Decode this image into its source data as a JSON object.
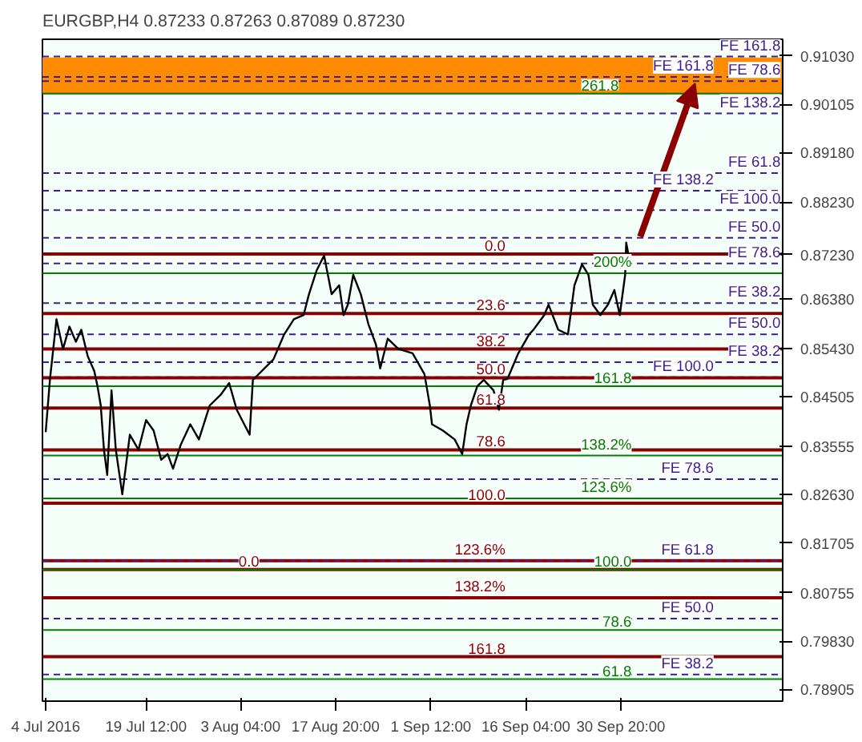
{
  "chart_data": {
    "type": "line",
    "title": "EURGBP,H4  0.87233 0.87263 0.87089 0.87230",
    "x": [
      "2016-07-04T00:00",
      "2016-07-04T16:00",
      "2016-07-05T16:00",
      "2016-07-06T16:00",
      "2016-07-07T16:00",
      "2016-07-08T16:00",
      "2016-07-09T12:00",
      "2016-07-10T12:00",
      "2016-07-11T12:00",
      "2016-07-12T00:00",
      "2016-07-12T12:00",
      "2016-07-13T00:00",
      "2016-07-13T12:00",
      "2016-07-14T04:00",
      "2016-07-14T20:00",
      "2016-07-15T20:00",
      "2016-07-17T00:00",
      "2016-07-18T08:00",
      "2016-07-19T12:00",
      "2016-07-20T16:00",
      "2016-07-21T20:00",
      "2016-07-22T20:00",
      "2016-07-23T16:00",
      "2016-07-24T20:00",
      "2016-07-26T08:00",
      "2016-07-27T16:00",
      "2016-07-29T08:00",
      "2016-07-31T00:00",
      "2016-08-01T08:00",
      "2016-08-02T12:00",
      "2016-08-04T12:00",
      "2016-08-05T00:00",
      "2016-08-05T04:00",
      "2016-08-08T04:00",
      "2016-08-09T20:00",
      "2016-08-11T08:00",
      "2016-08-12T20:00",
      "2016-08-13T16:00",
      "2016-08-14T20:00",
      "2016-08-16T00:00",
      "2016-08-17T04:00",
      "2016-08-18T08:00",
      "2016-08-19T00:00",
      "2016-08-19T16:00",
      "2016-08-20T12:00",
      "2016-08-21T16:00",
      "2016-08-22T20:00",
      "2016-08-24T00:00",
      "2016-08-24T16:00",
      "2016-08-25T20:00",
      "2016-08-27T12:00",
      "2016-08-29T16:00",
      "2016-08-31T12:00",
      "2016-09-01T08:00",
      "2016-09-01T16:00",
      "2016-09-03T08:00",
      "2016-09-05T04:00",
      "2016-09-06T08:00",
      "2016-09-07T00:00",
      "2016-09-07T16:00",
      "2016-09-08T16:00",
      "2016-09-09T16:00",
      "2016-09-11T04:00",
      "2016-09-12T00:00",
      "2016-09-12T16:00",
      "2016-09-13T08:00",
      "2016-09-15T00:00",
      "2016-09-16T16:00",
      "2016-09-17T08:00",
      "2016-09-19T00:00",
      "2016-09-19T16:00",
      "2016-09-21T04:00",
      "2016-09-22T16:00",
      "2016-09-23T16:00",
      "2016-09-24T20:00",
      "2016-09-25T20:00",
      "2016-09-26T12:00",
      "2016-09-27T16:00",
      "2016-09-28T20:00",
      "2016-09-29T20:00",
      "2016-09-30T16:00",
      "2016-10-01T12:00",
      "2016-10-01T16:00",
      "2016-10-02T00:00"
    ],
    "series": [
      {
        "color": "#000000",
        "values": [
          0.8383,
          0.8485,
          0.8599,
          0.8542,
          0.8585,
          0.8556,
          0.8579,
          0.8528,
          0.85,
          0.8471,
          0.8434,
          0.8349,
          0.8301,
          0.8463,
          0.8349,
          0.8264,
          0.8378,
          0.8349,
          0.8406,
          0.8386,
          0.833,
          0.8341,
          0.8313,
          0.8358,
          0.8398,
          0.8369,
          0.8434,
          0.8454,
          0.8477,
          0.8426,
          0.8378,
          0.8483,
          0.8485,
          0.8522,
          0.857,
          0.8599,
          0.8607,
          0.8647,
          0.8692,
          0.8721,
          0.8647,
          0.8664,
          0.8607,
          0.8627,
          0.8684,
          0.8647,
          0.859,
          0.8551,
          0.8505,
          0.8562,
          0.8542,
          0.8534,
          0.8494,
          0.8434,
          0.8398,
          0.8386,
          0.8369,
          0.8341,
          0.8398,
          0.8434,
          0.8471,
          0.8483,
          0.8463,
          0.8426,
          0.8483,
          0.8485,
          0.8534,
          0.857,
          0.8579,
          0.8607,
          0.8627,
          0.8579,
          0.857,
          0.8664,
          0.8704,
          0.8684,
          0.8627,
          0.8607,
          0.8627,
          0.8655,
          0.8607,
          0.8684,
          0.8746,
          0.8723
        ]
      }
    ],
    "xlim": [
      "2016-07-03T12:00",
      "2016-10-25T20:00"
    ],
    "xticks": [
      {
        "value": "2016-07-04T00:00",
        "label": "4 Jul 2016"
      },
      {
        "value": "2016-07-19T12:00",
        "label": "19 Jul 12:00"
      },
      {
        "value": "2016-08-03T04:00",
        "label": "3 Aug 04:00"
      },
      {
        "value": "2016-08-17T20:00",
        "label": "17 Aug 20:00"
      },
      {
        "value": "2016-09-01T12:00",
        "label": "1 Sep 12:00"
      },
      {
        "value": "2016-09-16T04:00",
        "label": "16 Sep 04:00"
      },
      {
        "value": "2016-09-30T20:00",
        "label": "30 Sep 20:00"
      }
    ],
    "ylim": [
      0.7868,
      0.9135
    ],
    "yticks": [
      {
        "value": 0.9103,
        "label": "0.91030"
      },
      {
        "value": 0.90105,
        "label": "0.90105"
      },
      {
        "value": 0.8918,
        "label": "0.89180"
      },
      {
        "value": 0.8823,
        "label": "0.88230"
      },
      {
        "value": 0.8723,
        "label": "0.87230"
      },
      {
        "value": 0.8638,
        "label": "0.86380"
      },
      {
        "value": 0.8543,
        "label": "0.85430"
      },
      {
        "value": 0.84505,
        "label": "0.84505"
      },
      {
        "value": 0.83555,
        "label": "0.83555"
      },
      {
        "value": 0.8263,
        "label": "0.82630"
      },
      {
        "value": 0.81705,
        "label": "0.81705"
      },
      {
        "value": 0.80755,
        "label": "0.80755"
      },
      {
        "value": 0.7983,
        "label": "0.79830"
      },
      {
        "value": 0.78905,
        "label": "0.78905"
      }
    ],
    "grid": false,
    "bands": [
      {
        "axis": "y",
        "from": 0.9029,
        "to": 0.91,
        "color": "#ff8c00"
      }
    ],
    "ref_lines": [
      {
        "axis": "y",
        "value": 0.9102,
        "color": "#3c1e8c",
        "line_style": "dashed"
      },
      {
        "axis": "y",
        "value": 0.9063,
        "color": "#3c1e8c",
        "line_style": "dashed"
      },
      {
        "axis": "y",
        "value": 0.9055,
        "color": "#3c1e8c",
        "line_style": "dashed"
      },
      {
        "axis": "y",
        "value": 0.9031,
        "color": "#008000",
        "line_style": "solid"
      },
      {
        "axis": "y",
        "value": 0.8993,
        "color": "#3c1e8c",
        "line_style": "dashed"
      },
      {
        "axis": "y",
        "value": 0.8879,
        "color": "#3c1e8c",
        "line_style": "dashed"
      },
      {
        "axis": "y",
        "value": 0.8845,
        "color": "#3c1e8c",
        "line_style": "dashed"
      },
      {
        "axis": "y",
        "value": 0.8808,
        "color": "#3c1e8c",
        "line_style": "dashed"
      },
      {
        "axis": "y",
        "value": 0.8755,
        "color": "#3c1e8c",
        "line_style": "dashed"
      },
      {
        "axis": "y",
        "value": 0.8724,
        "color": "#8b0000",
        "line_style": "solid"
      },
      {
        "axis": "y",
        "value": 0.8706,
        "color": "#3c1e8c",
        "line_style": "dashed"
      },
      {
        "axis": "y",
        "value": 0.8687,
        "color": "#008000",
        "line_style": "solid"
      },
      {
        "axis": "y",
        "value": 0.863,
        "color": "#3c1e8c",
        "line_style": "dashed"
      },
      {
        "axis": "y",
        "value": 0.861,
        "color": "#8b0000",
        "line_style": "solid"
      },
      {
        "axis": "y",
        "value": 0.857,
        "color": "#3c1e8c",
        "line_style": "dashed"
      },
      {
        "axis": "y",
        "value": 0.8542,
        "color": "#8b0000",
        "line_style": "solid"
      },
      {
        "axis": "y",
        "value": 0.8517,
        "color": "#3c1e8c",
        "line_style": "dashed"
      },
      {
        "axis": "y",
        "value": 0.8488,
        "color": "#3c1e8c",
        "line_style": "dashed"
      },
      {
        "axis": "y",
        "value": 0.8487,
        "color": "#8b0000",
        "line_style": "solid"
      },
      {
        "axis": "y",
        "value": 0.8471,
        "color": "#008000",
        "line_style": "solid"
      },
      {
        "axis": "y",
        "value": 0.8429,
        "color": "#8b0000",
        "line_style": "solid"
      },
      {
        "axis": "y",
        "value": 0.8349,
        "color": "#8b0000",
        "line_style": "solid"
      },
      {
        "axis": "y",
        "value": 0.8338,
        "color": "#008000",
        "line_style": "solid"
      },
      {
        "axis": "y",
        "value": 0.8293,
        "color": "#3c1e8c",
        "line_style": "dashed"
      },
      {
        "axis": "y",
        "value": 0.8256,
        "color": "#008000",
        "line_style": "solid"
      },
      {
        "axis": "y",
        "value": 0.8247,
        "color": "#8b0000",
        "line_style": "solid"
      },
      {
        "axis": "y",
        "value": 0.8137,
        "color": "#8b0000",
        "line_style": "solid"
      },
      {
        "axis": "y",
        "value": 0.8137,
        "color": "#3c1e8c",
        "line_style": "dashed"
      },
      {
        "axis": "y",
        "value": 0.812,
        "color": "#8b0000",
        "line_style": "solid"
      },
      {
        "axis": "y",
        "value": 0.812,
        "color": "#008000",
        "line_style": "solid"
      },
      {
        "axis": "y",
        "value": 0.8066,
        "color": "#8b0000",
        "line_style": "solid"
      },
      {
        "axis": "y",
        "value": 0.8026,
        "color": "#3c1e8c",
        "line_style": "dashed"
      },
      {
        "axis": "y",
        "value": 0.8004,
        "color": "#008000",
        "line_style": "solid"
      },
      {
        "axis": "y",
        "value": 0.7953,
        "color": "#8b0000",
        "line_style": "solid"
      },
      {
        "axis": "y",
        "value": 0.7919,
        "color": "#3c1e8c",
        "line_style": "dashed"
      },
      {
        "axis": "y",
        "value": 0.791,
        "color": "#008000",
        "line_style": "solid"
      }
    ],
    "annotations": [
      {
        "text": "FE 161.8",
        "x": "2016-10-25T12:00",
        "y": 0.9102
      },
      {
        "text": "FE 161.8",
        "x": "2016-10-15T04:00",
        "y": 0.9063
      },
      {
        "text": "FE 78.6",
        "x": "2016-10-25T12:00",
        "y": 0.9055
      },
      {
        "text": "261.8",
        "x": "2016-09-30T12:00",
        "y": 0.9031
      },
      {
        "text": "FE 138.2",
        "x": "2016-10-25T12:00",
        "y": 0.8993
      },
      {
        "text": "FE 61.8",
        "x": "2016-10-25T12:00",
        "y": 0.8879
      },
      {
        "text": "FE 138.2",
        "x": "2016-10-15T04:00",
        "y": 0.8845
      },
      {
        "text": "FE 100.0",
        "x": "2016-10-25T12:00",
        "y": 0.8808
      },
      {
        "text": "FE 50.0",
        "x": "2016-10-25T12:00",
        "y": 0.8755
      },
      {
        "text": "0.0",
        "x": "2016-09-13T00:00",
        "y": 0.8724
      },
      {
        "text": "FE 78.6",
        "x": "2016-10-25T12:00",
        "y": 0.8706
      },
      {
        "text": "200%",
        "x": "2016-10-02T12:00",
        "y": 0.8687
      },
      {
        "text": "FE 38.2",
        "x": "2016-10-25T12:00",
        "y": 0.863
      },
      {
        "text": "23.6",
        "x": "2016-09-13T00:00",
        "y": 0.861
      },
      {
        "text": "FE 50.0",
        "x": "2016-10-25T12:00",
        "y": 0.857
      },
      {
        "text": "38.2",
        "x": "2016-09-13T00:00",
        "y": 0.8542
      },
      {
        "text": "FE 38.2",
        "x": "2016-10-25T12:00",
        "y": 0.8517
      },
      {
        "text": "FE 100.0",
        "x": "2016-10-15T04:00",
        "y": 0.8488
      },
      {
        "text": "50.0",
        "x": "2016-09-13T00:00",
        "y": 0.8487
      },
      {
        "text": "161.8",
        "x": "2016-10-02T12:00",
        "y": 0.8471
      },
      {
        "text": "61.8",
        "x": "2016-09-13T00:00",
        "y": 0.8429
      },
      {
        "text": "78.6",
        "x": "2016-09-13T00:00",
        "y": 0.8349
      },
      {
        "text": "138.2%",
        "x": "2016-10-02T12:00",
        "y": 0.8338
      },
      {
        "text": "FE 78.6",
        "x": "2016-10-15T04:00",
        "y": 0.8293
      },
      {
        "text": "123.6%",
        "x": "2016-10-02T12:00",
        "y": 0.8256
      },
      {
        "text": "100.0",
        "x": "2016-09-13T00:00",
        "y": 0.8247
      },
      {
        "text": "123.6%",
        "x": "2016-09-13T00:00",
        "y": 0.8137
      },
      {
        "text": "FE 61.8",
        "x": "2016-10-15T04:00",
        "y": 0.8137
      },
      {
        "text": "0.0",
        "x": "2016-08-06T00:00",
        "y": 0.812
      },
      {
        "text": "100.0",
        "x": "2016-10-02T12:00",
        "y": 0.812
      },
      {
        "text": "138.2%",
        "x": "2016-09-13T00:00",
        "y": 0.8066
      },
      {
        "text": "FE 50.0",
        "x": "2016-10-15T04:00",
        "y": 0.8026
      },
      {
        "text": "78.6",
        "x": "2016-10-02T12:00",
        "y": 0.8004
      },
      {
        "text": "161.8",
        "x": "2016-09-13T00:00",
        "y": 0.7953
      },
      {
        "text": "FE 38.2",
        "x": "2016-10-15T04:00",
        "y": 0.7919
      },
      {
        "text": "61.8",
        "x": "2016-10-02T12:00",
        "y": 0.791
      }
    ]
  }
}
